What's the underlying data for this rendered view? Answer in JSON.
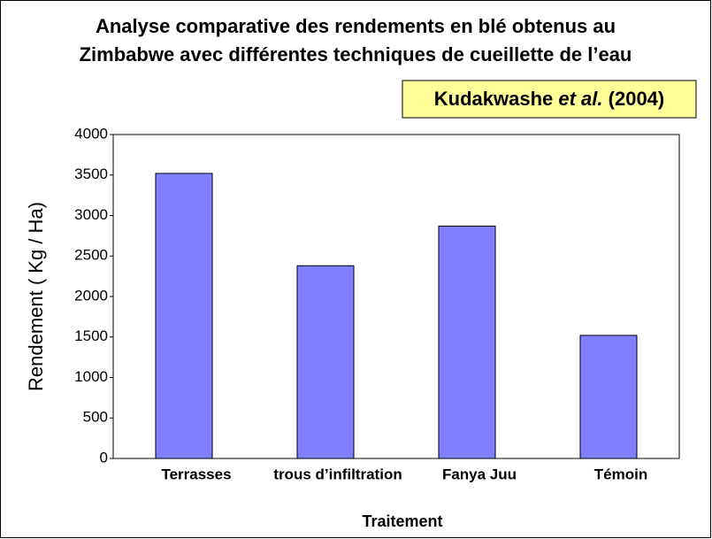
{
  "chart_data": {
    "type": "bar",
    "title": [
      "Analyse comparative des rendements en blé obtenus au",
      "Zimbabwe avec différentes techniques de cueillette de l’eau"
    ],
    "annotation": [
      "Kudakwashe",
      "et al.",
      "(2004)"
    ],
    "categories": [
      "Terrasses",
      "trous d’infiltration",
      "Fanya Juu",
      "Témoin"
    ],
    "values": [
      3520,
      2380,
      2870,
      1520
    ],
    "color": "#8080ff",
    "ylim": [
      0,
      4000
    ],
    "yticks": [
      0,
      500,
      1000,
      1500,
      2000,
      2500,
      3000,
      3500,
      4000
    ],
    "ylabel": "Rendement  ( Kg / Ha)",
    "xlabel": "Traitement",
    "grid": false
  }
}
